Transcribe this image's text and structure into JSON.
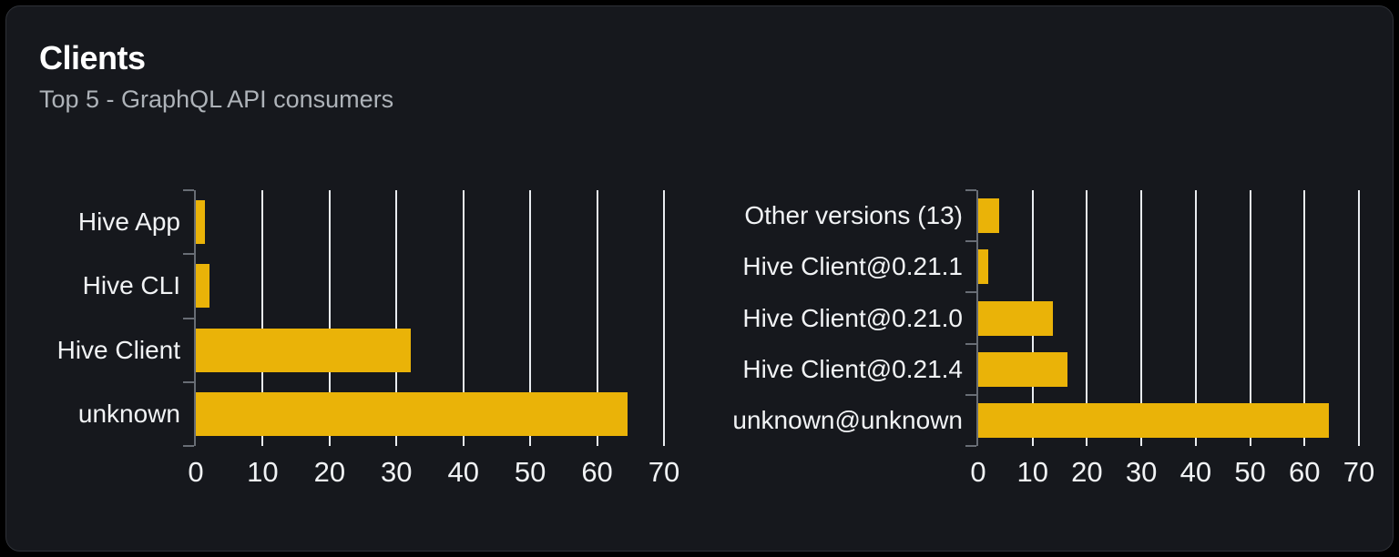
{
  "header": {
    "title": "Clients",
    "subtitle": "Top 5 - GraphQL API consumers"
  },
  "colors": {
    "page_bg": "#000000",
    "card_bg": "#16181d",
    "card_border": "#2e3137",
    "title": "#ffffff",
    "subtitle": "#aeb3b9",
    "bar": "#eab308",
    "gridline": "#e9ecf0",
    "axis": "#686d75",
    "category_label": "#f1f3f5",
    "tick_label": "#f1f3f5"
  },
  "chart_data": [
    {
      "type": "bar",
      "orientation": "horizontal",
      "title": "",
      "categories": [
        "Hive App",
        "Hive CLI",
        "Hive Client",
        "unknown"
      ],
      "values": [
        1.3,
        2,
        32.1,
        64.5
      ],
      "xlim": [
        0,
        70
      ],
      "xticks": [
        0,
        10,
        20,
        30,
        40,
        50,
        60,
        70
      ],
      "grid": "vertical",
      "legend": false
    },
    {
      "type": "bar",
      "orientation": "horizontal",
      "title": "",
      "categories": [
        "Other versions (13)",
        "Hive Client@0.21.1",
        "Hive Client@0.21.0",
        "Hive Client@0.21.4",
        "unknown@unknown"
      ],
      "values": [
        3.9,
        1.8,
        13.7,
        16.4,
        64.5
      ],
      "xlim": [
        0,
        70
      ],
      "xticks": [
        0,
        10,
        20,
        30,
        40,
        50,
        60,
        70
      ],
      "grid": "vertical",
      "legend": false
    }
  ]
}
